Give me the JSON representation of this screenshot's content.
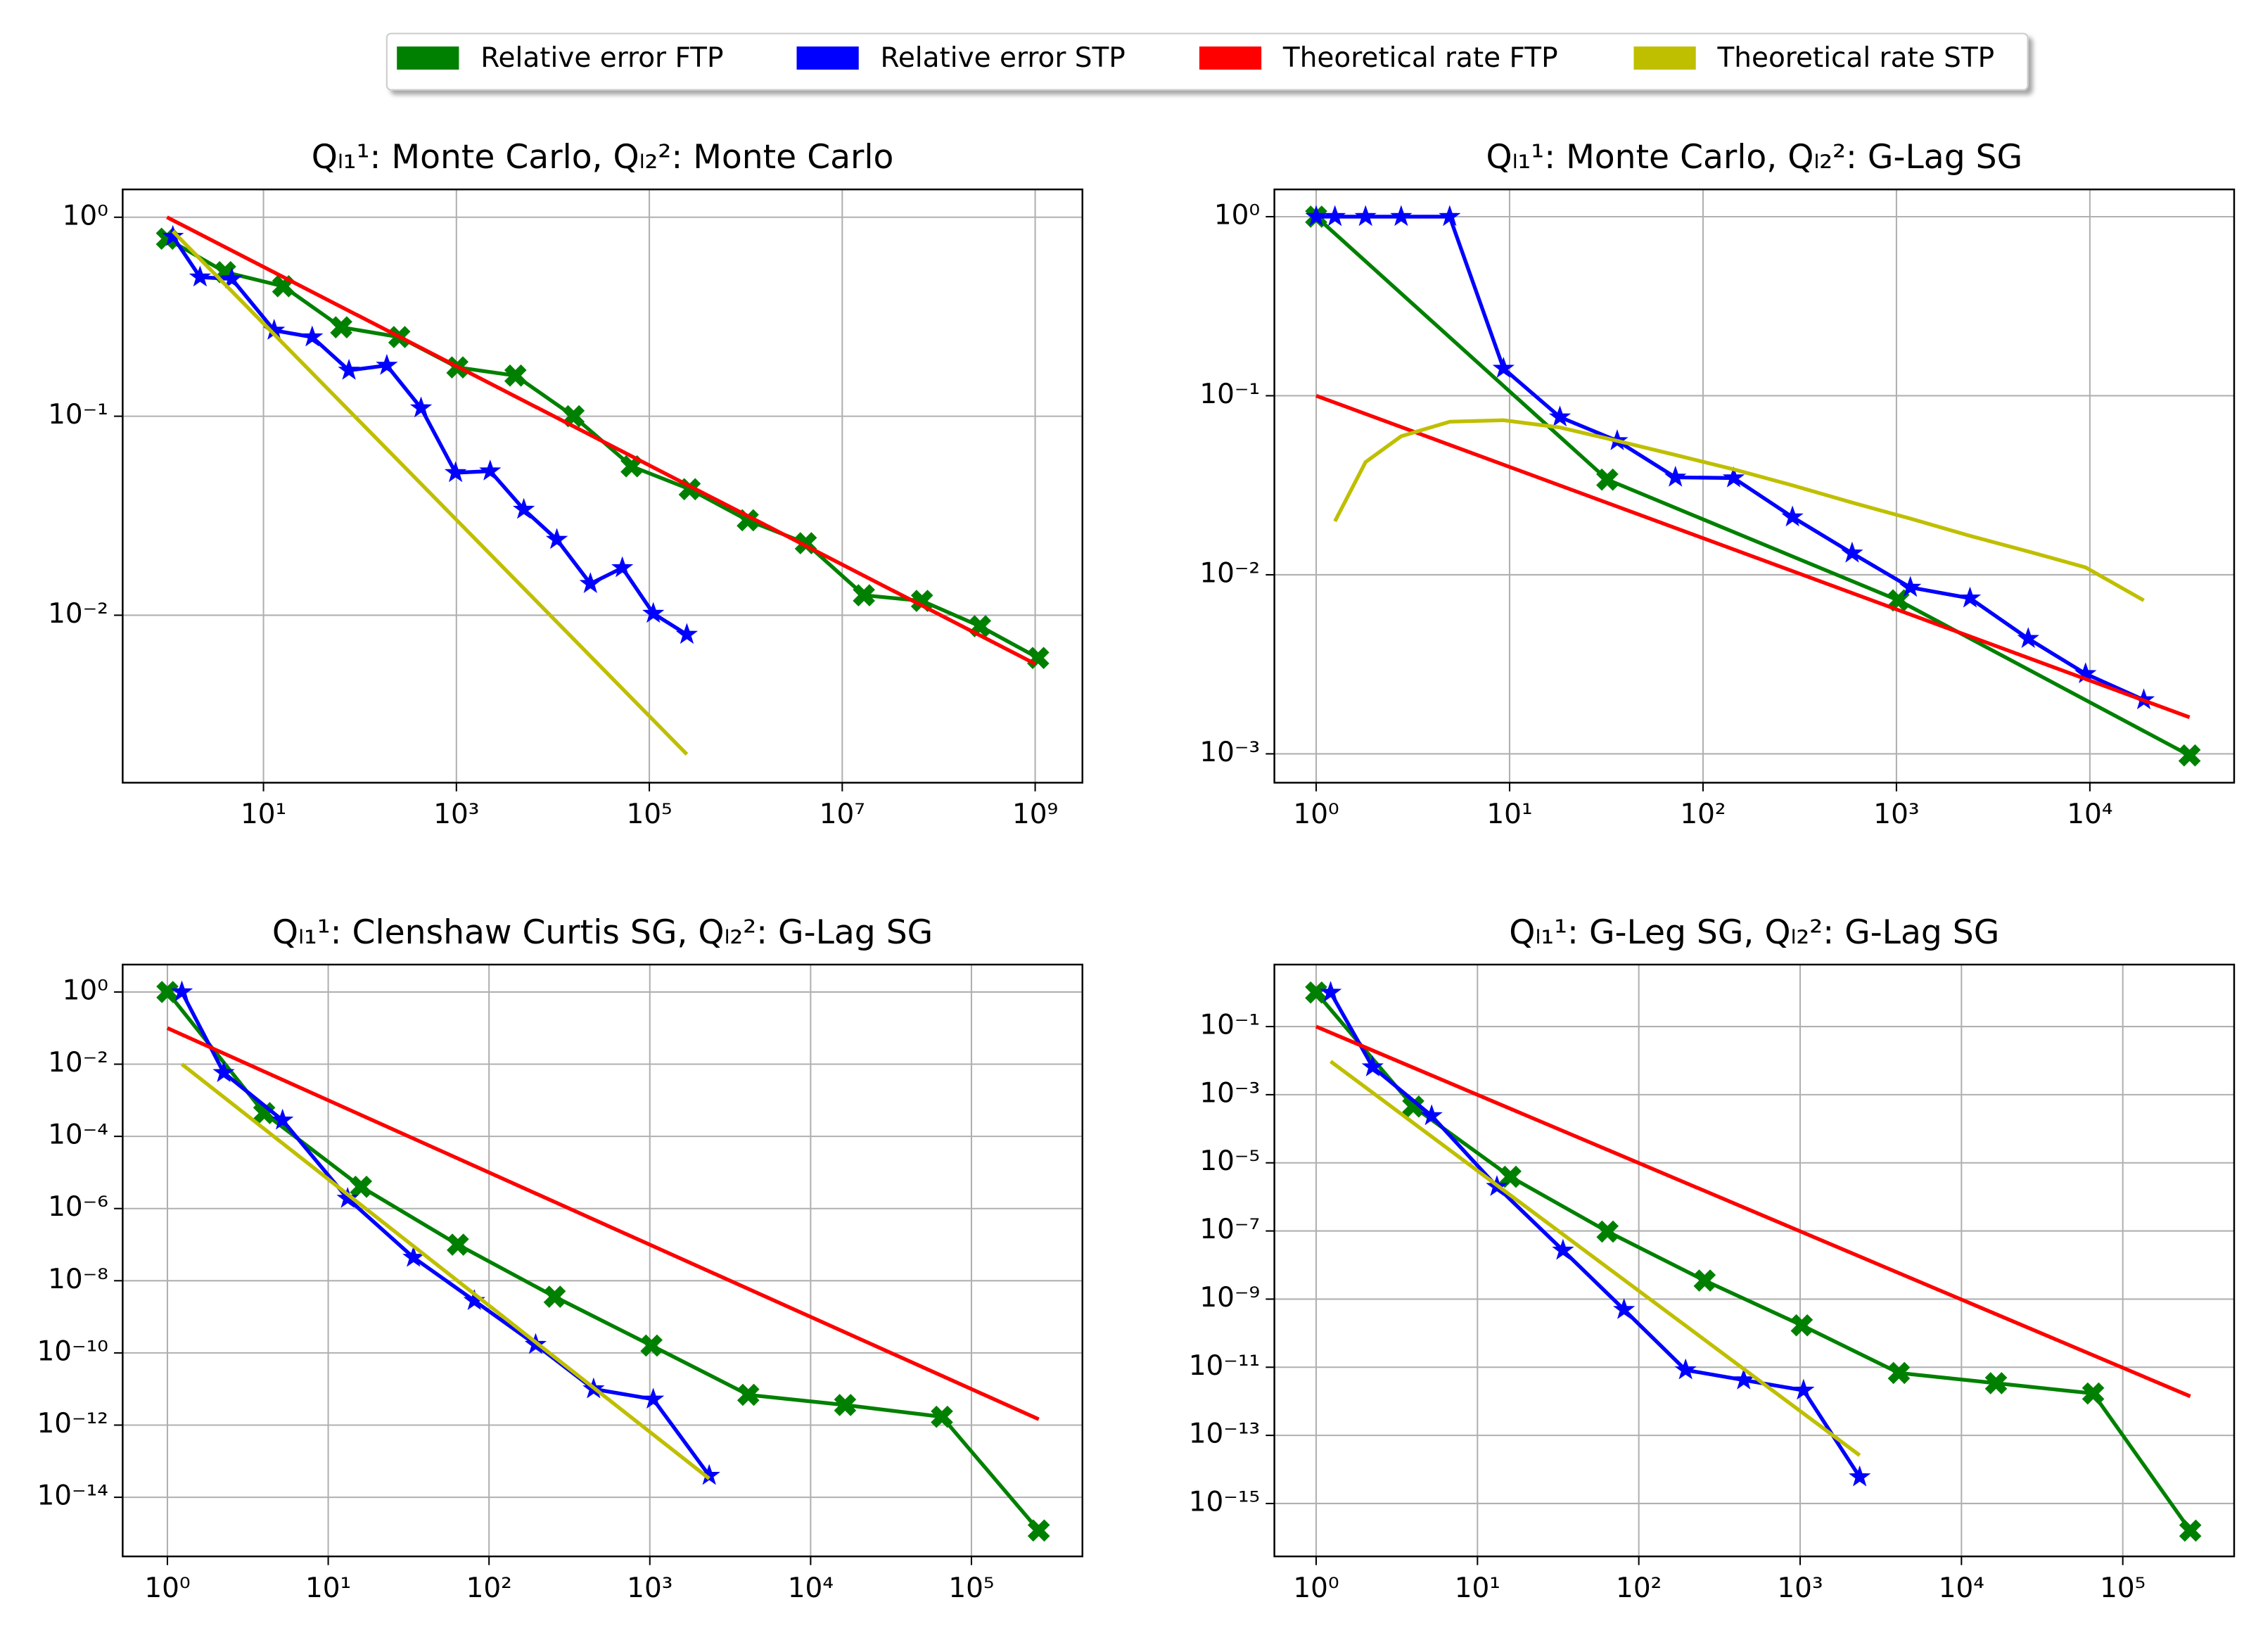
{
  "chart_data": [
    {
      "type": "line",
      "title": "Qₗ₁¹: Monte Carlo, Qₗ₂²: Monte Carlo",
      "xscale": "log",
      "yscale": "log",
      "grid": true,
      "legend": "upper center",
      "xlim": [
        0.347,
        3090000000
      ],
      "ylim": [
        0.00144,
        1.38
      ],
      "xticks": [
        {
          "value": 10,
          "label": "10¹"
        },
        {
          "value": 1000,
          "label": "10³"
        },
        {
          "value": 100000,
          "label": "10⁵"
        },
        {
          "value": 10000000,
          "label": "10⁷"
        },
        {
          "value": 1000000000,
          "label": "10⁹"
        }
      ],
      "yticks": [
        {
          "value": 1,
          "label": "10⁰"
        },
        {
          "value": 0.1,
          "label": "10⁻¹"
        },
        {
          "value": 0.01,
          "label": "10⁻²"
        }
      ],
      "series": [
        {
          "name": "Relative error FTP",
          "color": "#008000",
          "marker": "X",
          "x": [
            1,
            4,
            16,
            64,
            256,
            1024,
            4096,
            16384,
            65536,
            262144,
            1048576,
            4194304,
            16777216,
            67108864,
            268435456,
            1073741824
          ],
          "values": [
            0.78,
            0.53,
            0.45,
            0.28,
            0.25,
            0.176,
            0.16,
            0.1,
            0.056,
            0.043,
            0.03,
            0.023,
            0.0126,
            0.0118,
            0.0088,
            0.0061
          ]
        },
        {
          "name": "Relative error STP",
          "color": "#0000ff",
          "marker": "*",
          "x": [
            1.15,
            2.2,
            4.7,
            12.9,
            32,
            77,
            190,
            430,
            980,
            2240,
            5000,
            11000,
            24500,
            52500,
            110000,
            245000
          ],
          "values": [
            0.8,
            0.5,
            0.49,
            0.27,
            0.25,
            0.17,
            0.18,
            0.11,
            0.052,
            0.053,
            0.034,
            0.024,
            0.0144,
            0.0173,
            0.0102,
            0.008
          ]
        },
        {
          "name": "Theoretical rate FTP",
          "color": "#ff0000",
          "x": [
            1,
            1000000000
          ],
          "values": [
            1.0,
            0.0057
          ]
        },
        {
          "name": "Theoretical rate STP",
          "color": "#bfbf00",
          "x": [
            1.15,
            245000
          ],
          "values": [
            0.85,
            0.002
          ]
        }
      ]
    },
    {
      "type": "line",
      "title": "Qₗ₁¹: Monte Carlo, Qₗ₂²: G-Lag SG",
      "xscale": "log",
      "yscale": "log",
      "grid": true,
      "xlim": [
        0.608,
        55700
      ],
      "ylim": [
        0.00069,
        1.42
      ],
      "xticks": [
        {
          "value": 1,
          "label": "10⁰"
        },
        {
          "value": 10,
          "label": "10¹"
        },
        {
          "value": 100,
          "label": "10²"
        },
        {
          "value": 1000,
          "label": "10³"
        },
        {
          "value": 10000,
          "label": "10⁴"
        }
      ],
      "yticks": [
        {
          "value": 1,
          "label": "10⁰"
        },
        {
          "value": 0.1,
          "label": "10⁻¹"
        },
        {
          "value": 0.01,
          "label": "10⁻²"
        },
        {
          "value": 0.001,
          "label": "10⁻³"
        }
      ],
      "series": [
        {
          "color": "#008000",
          "marker": "X",
          "x": [
            1,
            32,
            1024,
            32768
          ],
          "values": [
            1.0,
            0.034,
            0.0072,
            0.00098
          ]
        },
        {
          "color": "#0000ff",
          "marker": "*",
          "x": [
            1,
            1.25,
            1.8,
            2.75,
            4.9,
            9.3,
            18.2,
            36,
            72,
            144,
            290,
            590,
            1180,
            2400,
            4800,
            9500,
            19000
          ],
          "values": [
            1.0,
            1.0,
            1.0,
            1.0,
            1.0,
            0.142,
            0.076,
            0.056,
            0.035,
            0.0347,
            0.021,
            0.0132,
            0.0085,
            0.0074,
            0.0044,
            0.0028,
            0.002
          ]
        },
        {
          "color": "#ff0000",
          "x": [
            1,
            32768
          ],
          "values": [
            0.1,
            0.0016
          ]
        },
        {
          "color": "#bfbf00",
          "x": [
            1.25,
            1.8,
            2.75,
            4.9,
            9.3,
            18.2,
            36,
            72,
            144,
            290,
            590,
            1180,
            2400,
            4800,
            9500,
            19000
          ],
          "values": [
            0.0199,
            0.0426,
            0.0594,
            0.0716,
            0.073,
            0.0665,
            0.056,
            0.0467,
            0.0388,
            0.0316,
            0.0253,
            0.0206,
            0.0165,
            0.0135,
            0.011,
            0.0072
          ]
        }
      ]
    },
    {
      "type": "line",
      "title": "Qₗ₁¹: Clenshaw Curtis SG, Qₗ₂²: G-Lag SG",
      "xscale": "log",
      "yscale": "log",
      "grid": true,
      "xlim": [
        0.527,
        490000
      ],
      "ylim": [
        2.3e-16,
        5.75
      ],
      "xticks": [
        {
          "value": 1,
          "label": "10⁰"
        },
        {
          "value": 10,
          "label": "10¹"
        },
        {
          "value": 100,
          "label": "10²"
        },
        {
          "value": 1000,
          "label": "10³"
        },
        {
          "value": 10000,
          "label": "10⁴"
        },
        {
          "value": 100000,
          "label": "10⁵"
        }
      ],
      "yticks": [
        {
          "value": 1,
          "label": "10⁰"
        },
        {
          "value": 0.01,
          "label": "10⁻²"
        },
        {
          "value": 0.0001,
          "label": "10⁻⁴"
        },
        {
          "value": 1e-06,
          "label": "10⁻⁶"
        },
        {
          "value": 1e-08,
          "label": "10⁻⁸"
        },
        {
          "value": 1e-10,
          "label": "10⁻¹⁰"
        },
        {
          "value": 1e-12,
          "label": "10⁻¹²"
        },
        {
          "value": 1e-14,
          "label": "10⁻¹⁴"
        }
      ],
      "series": [
        {
          "color": "#008000",
          "marker": "X",
          "x": [
            1,
            4,
            16,
            64,
            256,
            1024,
            4096,
            16384,
            65536,
            262144
          ],
          "values": [
            1.0,
            0.00044,
            4e-06,
            1e-07,
            3.6e-09,
            1.6e-10,
            6.9e-12,
            3.6e-12,
            1.7e-12,
            1.2e-15
          ]
        },
        {
          "color": "#0000ff",
          "marker": "*",
          "x": [
            1.23,
            2.24,
            5.2,
            13.2,
            33.9,
            81,
            195,
            447,
            1050,
            2340
          ],
          "values": [
            1.0,
            0.0058,
            0.00028,
            1.9e-06,
            4.4e-08,
            2.8e-09,
            1.7e-10,
            1e-11,
            5.2e-12,
            4e-14
          ]
        },
        {
          "color": "#ff0000",
          "x": [
            1,
            262144
          ],
          "values": [
            0.1,
            1.45e-12
          ]
        },
        {
          "color": "#bfbf00",
          "x": [
            1.23,
            2340
          ],
          "values": [
            0.01,
            3.3e-14
          ]
        }
      ]
    },
    {
      "type": "line",
      "title": "Qₗ₁¹: G-Leg SG, Qₗ₂²: G-Lag SG",
      "xscale": "log",
      "yscale": "log",
      "grid": true,
      "xlim": [
        0.551,
        490000
      ],
      "ylim": [
        2.8e-17,
        6.6
      ],
      "xticks": [
        {
          "value": 1,
          "label": "10⁰"
        },
        {
          "value": 10,
          "label": "10¹"
        },
        {
          "value": 100,
          "label": "10²"
        },
        {
          "value": 1000,
          "label": "10³"
        },
        {
          "value": 10000,
          "label": "10⁴"
        },
        {
          "value": 100000,
          "label": "10⁵"
        }
      ],
      "yticks": [
        {
          "value": 0.1,
          "label": "10⁻¹"
        },
        {
          "value": 0.001,
          "label": "10⁻³"
        },
        {
          "value": 1e-05,
          "label": "10⁻⁵"
        },
        {
          "value": 1e-07,
          "label": "10⁻⁷"
        },
        {
          "value": 1e-09,
          "label": "10⁻⁹"
        },
        {
          "value": 1e-11,
          "label": "10⁻¹¹"
        },
        {
          "value": 1e-13,
          "label": "10⁻¹³"
        },
        {
          "value": 1e-15,
          "label": "10⁻¹⁵"
        }
      ],
      "series": [
        {
          "color": "#008000",
          "marker": "X",
          "x": [
            1,
            4,
            16,
            64,
            256,
            1024,
            4096,
            16384,
            65536,
            262144
          ],
          "values": [
            1.0,
            0.00045,
            3.9e-06,
            9.6e-08,
            3.5e-09,
            1.7e-10,
            6.8e-12,
            3.4e-12,
            1.7e-12,
            1.6e-16
          ]
        },
        {
          "color": "#0000ff",
          "marker": "*",
          "x": [
            1.23,
            2.24,
            5.2,
            13.2,
            33.9,
            81,
            195,
            447,
            1050,
            2340
          ],
          "values": [
            1.0,
            0.0065,
            0.00024,
            2e-06,
            2.7e-08,
            4.9e-10,
            8.3e-12,
            4.2e-12,
            2.1e-12,
            6e-15
          ]
        },
        {
          "color": "#ff0000",
          "x": [
            1,
            262144
          ],
          "values": [
            0.1,
            1.4e-12
          ]
        },
        {
          "color": "#bfbf00",
          "x": [
            1.23,
            2340
          ],
          "values": [
            0.0095,
            2.6e-14
          ]
        }
      ]
    }
  ]
}
